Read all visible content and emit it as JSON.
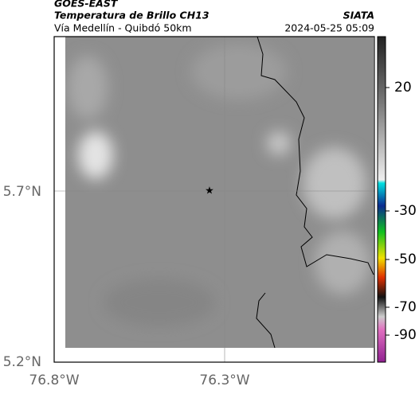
{
  "header": {
    "left_title": "GOES-EAST",
    "subtitle": "Temperatura de Brillo CH13",
    "location": "Vía Medellín - Quibdó 50km",
    "right_title": "SIATA",
    "datetime": "2024-05-25 05:09"
  },
  "map": {
    "lat_labels": [
      "5.7°N",
      "5.2°N"
    ],
    "lon_labels": [
      "76.8°W",
      "76.3°W"
    ]
  },
  "colorbar": {
    "tick_labels": [
      "20",
      "-30",
      "-50",
      "-70",
      "-90"
    ]
  }
}
